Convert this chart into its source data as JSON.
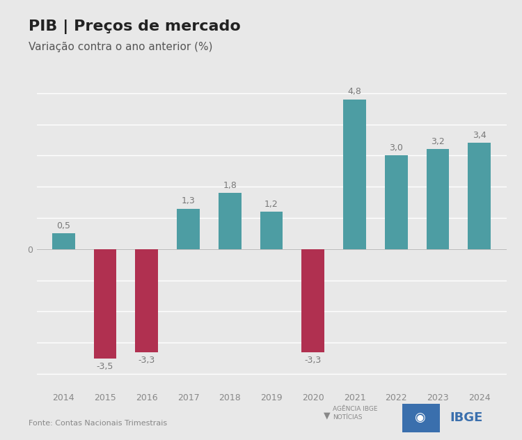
{
  "title": "PIB | Preços de mercado",
  "subtitle": "Variação contra o ano anterior (%)",
  "categories": [
    "2014",
    "2015",
    "2016",
    "2017",
    "2018",
    "2019",
    "2020",
    "2021",
    "2022",
    "2023",
    "2024"
  ],
  "values": [
    0.5,
    -3.5,
    -3.3,
    1.3,
    1.8,
    1.2,
    -3.3,
    4.8,
    3.0,
    3.2,
    3.4
  ],
  "positive_color": "#4d9da3",
  "negative_color": "#b03050",
  "background_color": "#e8e8e8",
  "plot_background_color": "#e8e8e8",
  "grid_color": "#ffffff",
  "ylim": [
    -4.5,
    5.8
  ],
  "ytick_zero_label": "0",
  "source_text": "Fonte: Contas Nacionais Trimestrais",
  "title_fontsize": 16,
  "subtitle_fontsize": 11,
  "bar_width": 0.55,
  "label_fontsize": 9,
  "tick_fontsize": 9,
  "source_fontsize": 8,
  "zero_label_fontsize": 9,
  "label_color": "#777777",
  "tick_color": "#888888"
}
